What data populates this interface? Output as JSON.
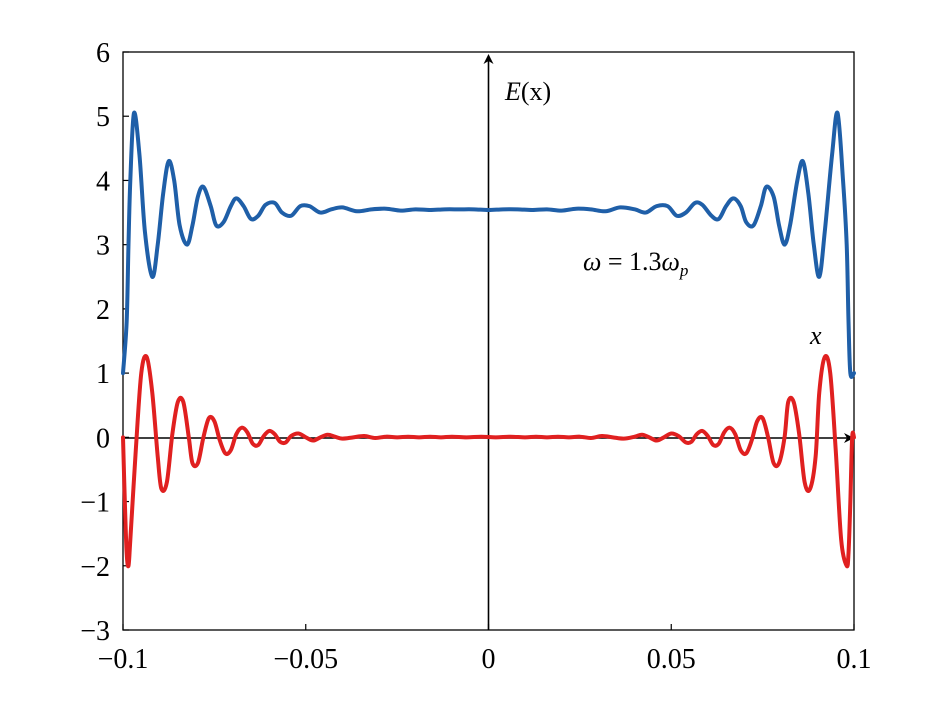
{
  "chart_data": {
    "type": "line",
    "xlim": [
      -0.1,
      0.1
    ],
    "ylim": [
      -3,
      6
    ],
    "x_ticks": [
      {
        "value": -0.1,
        "label": "−0.1"
      },
      {
        "value": -0.05,
        "label": "−0.05"
      },
      {
        "value": 0,
        "label": "0"
      },
      {
        "value": 0.05,
        "label": "0.05"
      },
      {
        "value": 0.1,
        "label": "0.1"
      }
    ],
    "y_ticks": [
      {
        "value": 6,
        "label": "6"
      },
      {
        "value": 5,
        "label": "5"
      },
      {
        "value": 4,
        "label": "4"
      },
      {
        "value": 3,
        "label": "3"
      },
      {
        "value": 2,
        "label": "2"
      },
      {
        "value": 1,
        "label": "1"
      },
      {
        "value": 0,
        "label": "0"
      },
      {
        "value": -1,
        "label": "−1"
      },
      {
        "value": -2,
        "label": "−2"
      },
      {
        "value": -3,
        "label": "−3"
      }
    ],
    "grid": false,
    "legend": "none",
    "annotations": {
      "y_axis_label": {
        "E": "E",
        "rest": "(x)"
      },
      "x_axis_label": "x",
      "omega_label": {
        "omega": "ω",
        "eq": " = 1.3",
        "omega2": "ω",
        "sub": "p"
      }
    },
    "series": [
      {
        "color": "#1f5fa8",
        "x": [
          -0.1,
          -0.099,
          -0.0985,
          -0.098,
          -0.097,
          -0.0955,
          -0.094,
          -0.092,
          -0.0905,
          -0.089,
          -0.0875,
          -0.086,
          -0.0845,
          -0.0825,
          -0.081,
          -0.0795,
          -0.078,
          -0.076,
          -0.0745,
          -0.0725,
          -0.0705,
          -0.069,
          -0.067,
          -0.065,
          -0.063,
          -0.061,
          -0.0585,
          -0.0565,
          -0.054,
          -0.0515,
          -0.049,
          -0.046,
          -0.043,
          -0.04,
          -0.036,
          -0.032,
          -0.028,
          -0.024,
          -0.02,
          -0.016,
          -0.012,
          -0.008,
          -0.004,
          0,
          0.004,
          0.008,
          0.012,
          0.016,
          0.02,
          0.024,
          0.028,
          0.032,
          0.036,
          0.04,
          0.043,
          0.046,
          0.049,
          0.0515,
          0.054,
          0.0565,
          0.0585,
          0.061,
          0.063,
          0.065,
          0.067,
          0.069,
          0.0705,
          0.0725,
          0.0745,
          0.076,
          0.078,
          0.0795,
          0.081,
          0.0825,
          0.0845,
          0.086,
          0.0875,
          0.089,
          0.0905,
          0.092,
          0.094,
          0.0955,
          0.097,
          0.098,
          0.0985,
          0.099,
          0.1
        ],
        "values": [
          1.0,
          1.8,
          3.0,
          4.0,
          5.05,
          4.4,
          3.2,
          2.5,
          3.0,
          3.8,
          4.3,
          4.0,
          3.3,
          3.0,
          3.3,
          3.75,
          3.9,
          3.6,
          3.3,
          3.35,
          3.6,
          3.72,
          3.6,
          3.4,
          3.45,
          3.62,
          3.65,
          3.5,
          3.45,
          3.6,
          3.6,
          3.5,
          3.55,
          3.58,
          3.52,
          3.55,
          3.56,
          3.53,
          3.55,
          3.54,
          3.55,
          3.55,
          3.55,
          3.54,
          3.55,
          3.55,
          3.54,
          3.55,
          3.53,
          3.56,
          3.55,
          3.52,
          3.58,
          3.55,
          3.5,
          3.6,
          3.6,
          3.45,
          3.5,
          3.65,
          3.62,
          3.45,
          3.4,
          3.6,
          3.72,
          3.6,
          3.35,
          3.3,
          3.6,
          3.9,
          3.75,
          3.3,
          3.0,
          3.3,
          4.0,
          4.3,
          3.8,
          3.0,
          2.5,
          3.2,
          4.4,
          5.05,
          4.0,
          3.0,
          1.8,
          1.0,
          1.0
        ]
      },
      {
        "color": "#e02020",
        "x": [
          -0.1,
          -0.0995,
          -0.099,
          -0.0985,
          -0.098,
          -0.0965,
          -0.095,
          -0.0935,
          -0.092,
          -0.0905,
          -0.0895,
          -0.088,
          -0.0865,
          -0.085,
          -0.0835,
          -0.082,
          -0.081,
          -0.0795,
          -0.078,
          -0.0765,
          -0.075,
          -0.0735,
          -0.072,
          -0.0705,
          -0.069,
          -0.0675,
          -0.066,
          -0.0645,
          -0.063,
          -0.0615,
          -0.06,
          -0.0585,
          -0.057,
          -0.0555,
          -0.054,
          -0.052,
          -0.05,
          -0.048,
          -0.046,
          -0.044,
          -0.042,
          -0.04,
          -0.037,
          -0.034,
          -0.031,
          -0.028,
          -0.025,
          -0.022,
          -0.019,
          -0.016,
          -0.013,
          -0.01,
          -0.006,
          -0.002,
          0.002,
          0.006,
          0.01,
          0.013,
          0.016,
          0.019,
          0.022,
          0.025,
          0.028,
          0.031,
          0.034,
          0.037,
          0.04,
          0.042,
          0.044,
          0.046,
          0.048,
          0.05,
          0.052,
          0.054,
          0.0555,
          0.057,
          0.0585,
          0.06,
          0.0615,
          0.063,
          0.0645,
          0.066,
          0.0675,
          0.069,
          0.0705,
          0.072,
          0.0735,
          0.075,
          0.0765,
          0.078,
          0.0795,
          0.081,
          0.082,
          0.0835,
          0.085,
          0.0865,
          0.088,
          0.0895,
          0.0905,
          0.092,
          0.0935,
          0.095,
          0.0965,
          0.098,
          0.0985,
          0.099,
          0.0995,
          0.1
        ],
        "values": [
          0.0,
          -1.0,
          -1.8,
          -2.0,
          -1.6,
          -0.2,
          1.0,
          1.25,
          0.7,
          -0.3,
          -0.8,
          -0.7,
          0.05,
          0.55,
          0.55,
          0.0,
          -0.4,
          -0.4,
          0.0,
          0.3,
          0.25,
          -0.05,
          -0.25,
          -0.2,
          0.05,
          0.15,
          0.08,
          -0.1,
          -0.12,
          0.02,
          0.1,
          0.05,
          -0.07,
          -0.08,
          0.02,
          0.06,
          0.0,
          -0.05,
          0.0,
          0.04,
          0.01,
          -0.02,
          0.0,
          0.02,
          -0.01,
          0.01,
          0.0,
          0.01,
          0.0,
          0.01,
          0.0,
          0.01,
          0.0,
          0.01,
          0.0,
          0.01,
          0.0,
          0.01,
          0.0,
          0.01,
          0.0,
          0.01,
          -0.01,
          0.02,
          0.0,
          -0.02,
          0.01,
          0.04,
          0.0,
          -0.05,
          0.0,
          0.06,
          0.02,
          -0.08,
          -0.07,
          0.05,
          0.1,
          0.02,
          -0.12,
          -0.1,
          0.08,
          0.15,
          0.05,
          -0.2,
          -0.25,
          -0.05,
          0.25,
          0.3,
          0.0,
          -0.4,
          -0.4,
          0.0,
          0.55,
          0.55,
          0.05,
          -0.7,
          -0.8,
          -0.3,
          0.7,
          1.25,
          1.0,
          -0.2,
          -1.6,
          -2.0,
          -1.8,
          -1.0,
          0.0,
          0.0
        ]
      }
    ]
  }
}
